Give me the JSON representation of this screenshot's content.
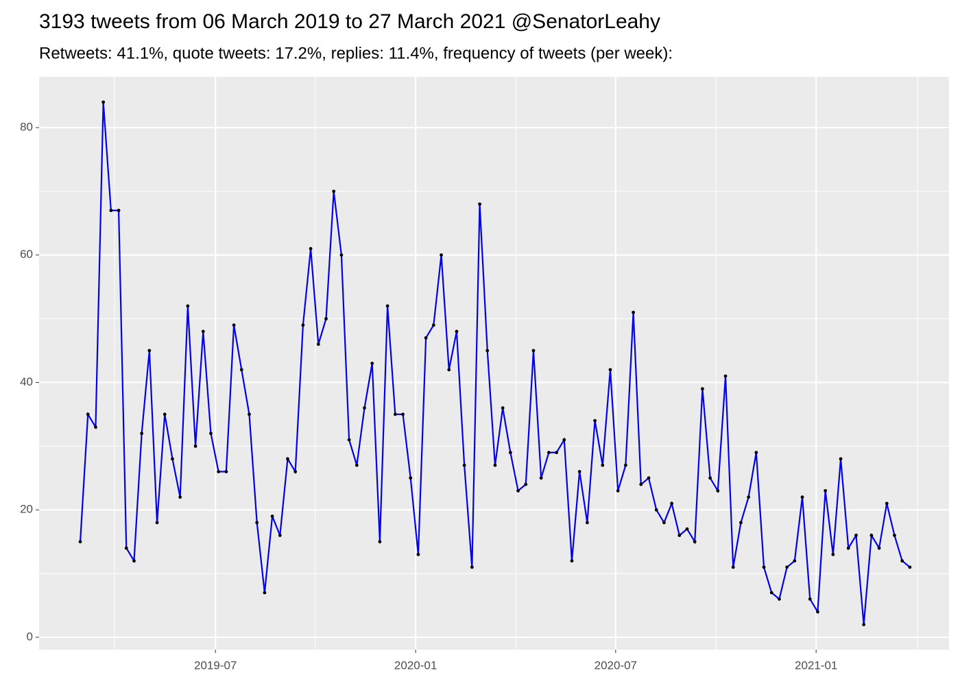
{
  "chart_data": {
    "type": "line",
    "title": "3193 tweets from 06 March 2019 to 27 March 2021 @SenatorLeahy",
    "subtitle": "Retweets: 41.1%, quote tweets: 17.2%, replies: 11.4%, frequency of tweets (per week):",
    "x": [
      0,
      1,
      2,
      3,
      4,
      5,
      6,
      7,
      8,
      9,
      10,
      11,
      12,
      13,
      14,
      15,
      16,
      17,
      18,
      19,
      20,
      21,
      22,
      23,
      24,
      25,
      26,
      27,
      28,
      29,
      30,
      31,
      32,
      33,
      34,
      35,
      36,
      37,
      38,
      39,
      40,
      41,
      42,
      43,
      44,
      45,
      46,
      47,
      48,
      49,
      50,
      51,
      52,
      53,
      54,
      55,
      56,
      57,
      58,
      59,
      60,
      61,
      62,
      63,
      64,
      65,
      66,
      67,
      68,
      69,
      70,
      71,
      72,
      73,
      74,
      75,
      76,
      77,
      78,
      79,
      80,
      81,
      82,
      83,
      84,
      85,
      86,
      87,
      88,
      89,
      90,
      91,
      92,
      93,
      94,
      95,
      96,
      97,
      98,
      99,
      100,
      101,
      102,
      103,
      104,
      105,
      106,
      107,
      108
    ],
    "series": [
      {
        "color": "#0000ee",
        "point_color": "#000000",
        "values": [
          15,
          35,
          33,
          84,
          67,
          67,
          14,
          12,
          32,
          45,
          18,
          35,
          28,
          22,
          52,
          30,
          48,
          32,
          26,
          26,
          49,
          42,
          35,
          18,
          7,
          19,
          16,
          28,
          26,
          49,
          61,
          46,
          50,
          70,
          60,
          31,
          27,
          36,
          43,
          15,
          52,
          35,
          35,
          25,
          13,
          47,
          49,
          60,
          42,
          48,
          27,
          11,
          68,
          45,
          27,
          36,
          29,
          23,
          24,
          45,
          25,
          29,
          29,
          31,
          12,
          26,
          18,
          34,
          27,
          42,
          23,
          27,
          51,
          24,
          25,
          20,
          18,
          21,
          16,
          17,
          15,
          39,
          25,
          23,
          41,
          11,
          18,
          22,
          29,
          11,
          7,
          6,
          11,
          12,
          22,
          6,
          4,
          23,
          13,
          28,
          14,
          16,
          2,
          16,
          14,
          21,
          16,
          12,
          11
        ]
      }
    ],
    "xlim": [
      -5.36,
      113.1
    ],
    "xticks": [
      {
        "value": 17.6,
        "label": "2019-07"
      },
      {
        "value": 43.66,
        "label": "2020-01"
      },
      {
        "value": 69.7,
        "label": "2020-07"
      },
      {
        "value": 95.8,
        "label": "2021-01"
      }
    ],
    "xminor": [
      4.46,
      30.6,
      56.7,
      82.8,
      109
    ],
    "ylim": [
      -1.94,
      87.97
    ],
    "yticks": [
      0,
      20,
      40,
      60,
      80
    ],
    "yminor": [
      10,
      30,
      50,
      70
    ],
    "grid": true
  }
}
